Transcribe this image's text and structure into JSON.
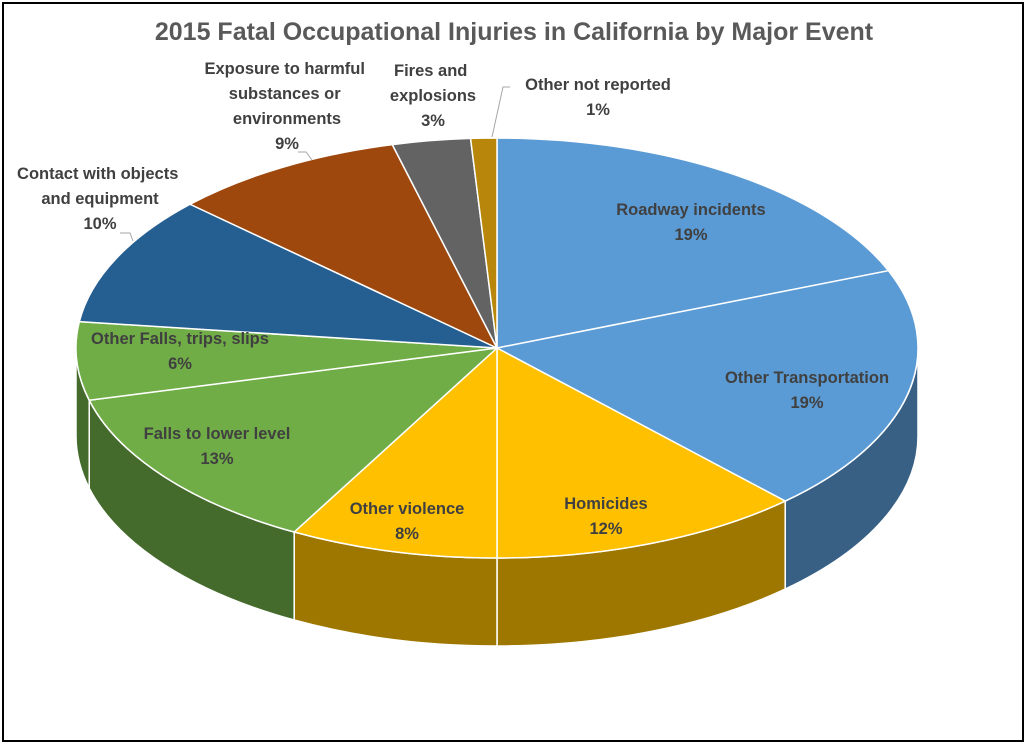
{
  "chart_data": {
    "type": "pie",
    "style": "3d",
    "title": "2015 Fatal Occupational Injuries in California by Major Event",
    "slices": [
      {
        "label": "Roadway incidents",
        "pct_label": "19%",
        "value": 19,
        "color": "#5B9BD5"
      },
      {
        "label": "Other Transportation",
        "pct_label": "19%",
        "value": 19,
        "color": "#5B9BD5"
      },
      {
        "label": "Homicides",
        "pct_label": "12%",
        "value": 12,
        "color": "#FFC000"
      },
      {
        "label": "Other violence",
        "pct_label": "8%",
        "value": 8,
        "color": "#FFC000"
      },
      {
        "label": "Falls to lower level",
        "pct_label": "13%",
        "value": 13,
        "color": "#70AD47"
      },
      {
        "label": "Other Falls, trips, slips",
        "pct_label": "6%",
        "value": 6,
        "color": "#70AD47"
      },
      {
        "label": "Contact with objects and equipment",
        "pct_label": "10%",
        "value": 10,
        "color": "#255E91"
      },
      {
        "label": "Exposure to harmful substances or environments",
        "pct_label": "9%",
        "value": 9,
        "color": "#9E480E"
      },
      {
        "label": "Fires and explosions",
        "pct_label": "3%",
        "value": 3,
        "color": "#636363"
      },
      {
        "label": "Other not reported",
        "pct_label": "1%",
        "value": 1,
        "color": "#B8860B"
      }
    ]
  }
}
